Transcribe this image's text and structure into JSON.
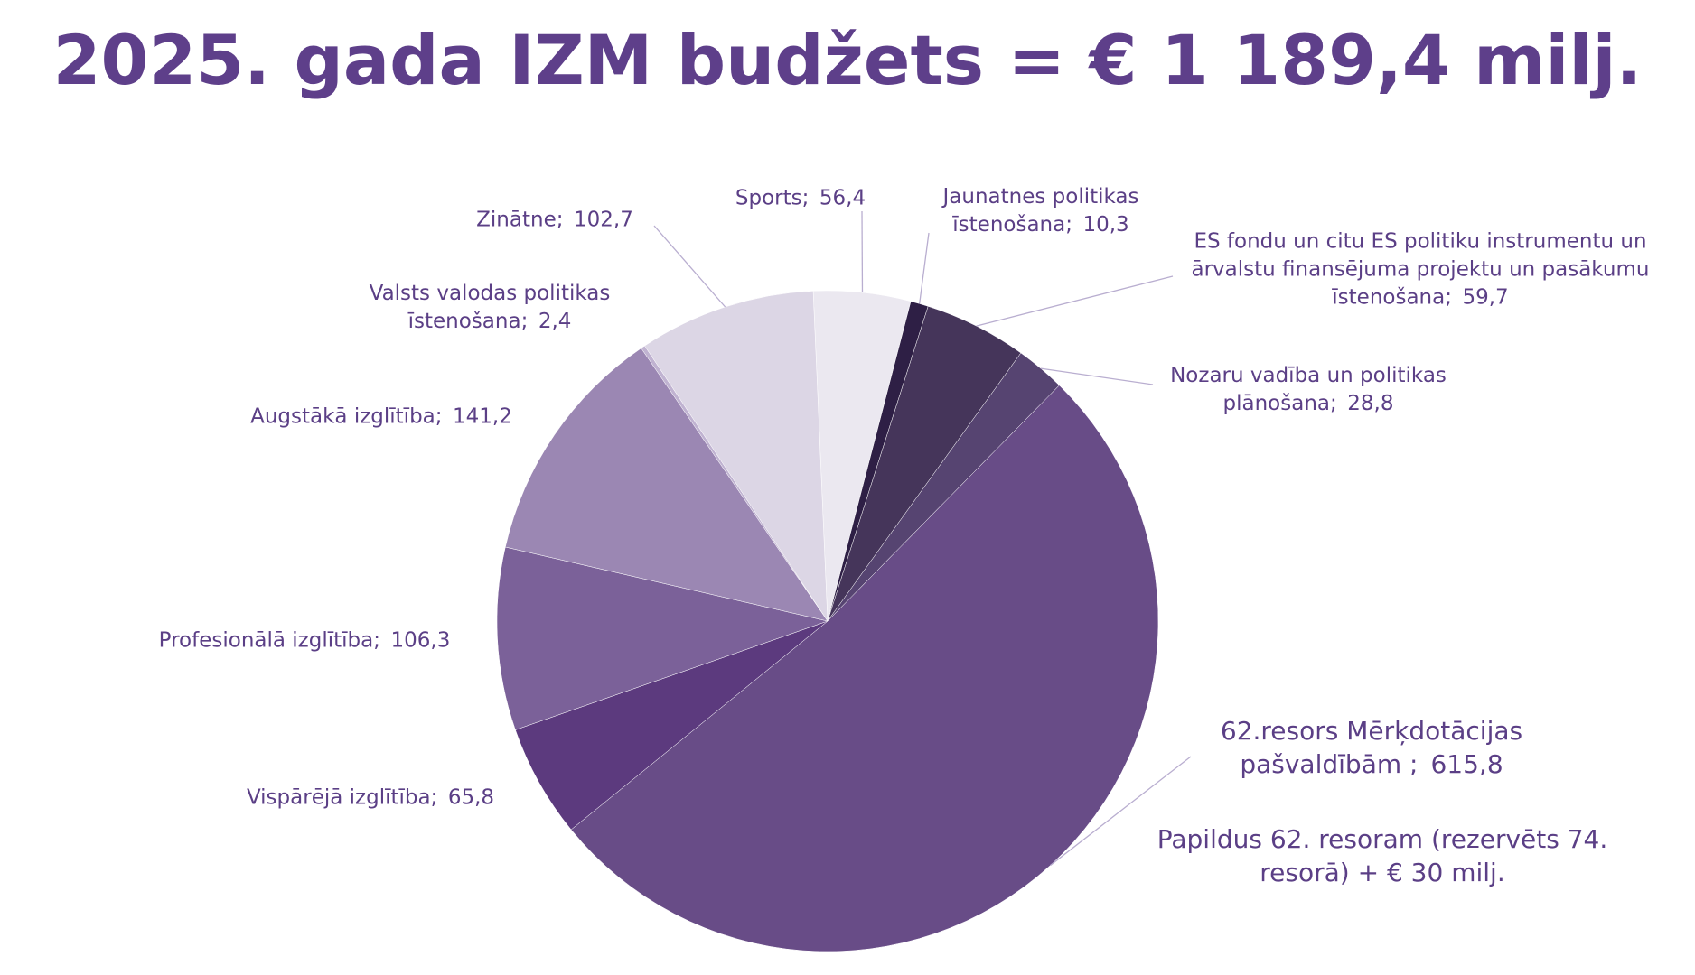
{
  "chart_data": {
    "type": "pie",
    "title": "2025. gada IZM budžets = € 1 189,4 milj.",
    "categories": [
      "Sports",
      "Jaunatnes politikas īstenošana",
      "ES fondu un citu ES politiku instrumentu un ārvalstu finansējuma projektu un pasākumu īstenošana",
      "Nozaru vadība un politikas plānošana",
      "62.resors  Mērķdotācijas pašvaldībām ",
      "Vispārējā izglītība",
      "Profesionālā izglītība",
      "Augstākā izglītība",
      "Valsts valodas politikas īstenošana",
      "Zinātne"
    ],
    "separator": ";",
    "values": [
      56.4,
      10.3,
      59.7,
      28.8,
      615.8,
      65.8,
      106.3,
      141.2,
      2.4,
      102.7
    ],
    "value_labels": [
      "56,4",
      "10,3",
      "59,7",
      "28,8",
      "615,8",
      "65,8",
      "106,3",
      "141,2",
      "2,4",
      "102,7"
    ],
    "colors": [
      "#ebe8f0",
      "#2e1f45",
      "#45355a",
      "#564471",
      "#684c87",
      "#5c3a7e",
      "#7b6199",
      "#9b87b3",
      "#c0b3d1",
      "#dcd6e5"
    ],
    "annotation": "Papildus 62. resoram (rezervēts 74. resorā) + € 30 milj."
  }
}
